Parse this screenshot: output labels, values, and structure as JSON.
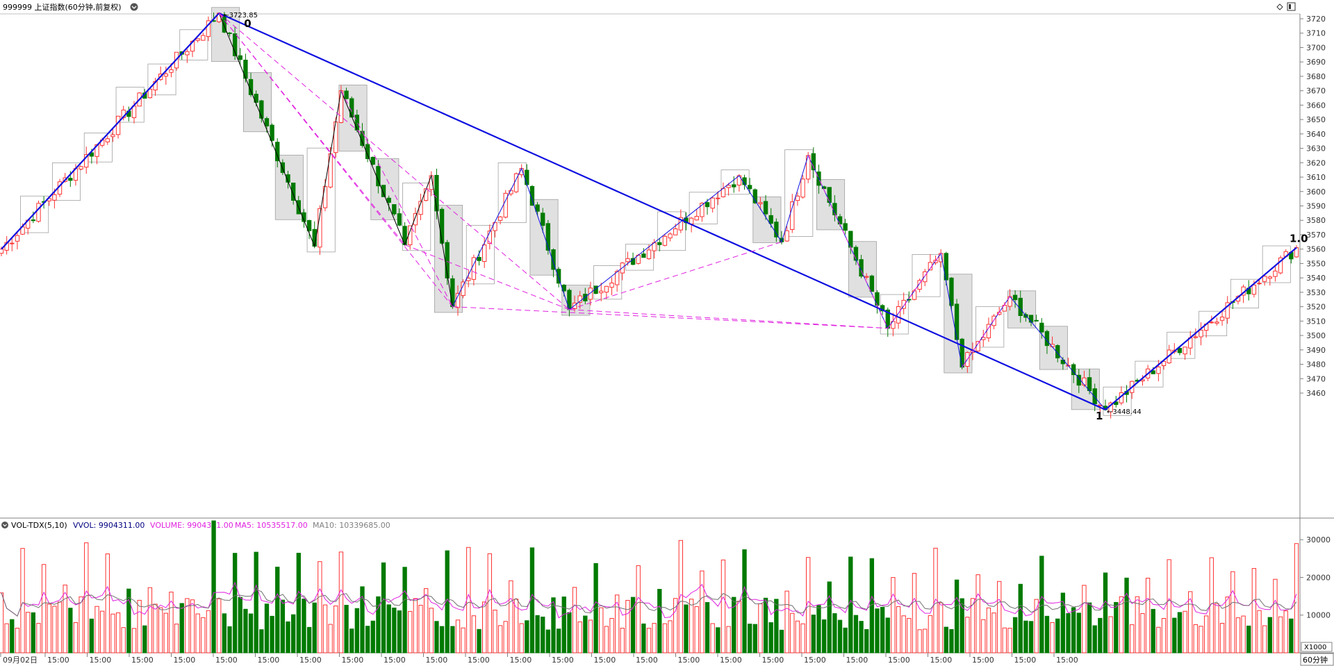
{
  "header": {
    "title": "999999 上证指数(60分钟,前复权)",
    "menu_icon": "chevron-down-icon",
    "right_icons": [
      "diamond-icon",
      "window-icon"
    ]
  },
  "volume_panel": {
    "indicator_name": "VOL-TDX(5,10)",
    "vvol_label": "VVOL: 9904311.00",
    "volume_label": "VOLUME: 9904311.00",
    "ma5_label": "MA5: 10535517.00",
    "ma10_label": "MA10: 10339685.00",
    "unit_label": "X1000",
    "period_label": "60分钟"
  },
  "colors": {
    "up": "#ff3030",
    "down": "#007a00",
    "blue_line": "#1010e0",
    "magenta": "#e020e0",
    "black_line": "#000000",
    "box": "#a0a0a0",
    "box_fill": "#d8d8d8",
    "ma5": "#e020e0",
    "ma10": "#707070"
  },
  "chart_data": {
    "type": "candlestick",
    "price_axis": {
      "ticks": [
        3460,
        3470,
        3480,
        3490,
        3500,
        3510,
        3520,
        3530,
        3540,
        3550,
        3560,
        3570,
        3580,
        3590,
        3600,
        3610,
        3620,
        3630,
        3640,
        3650,
        3660,
        3670,
        3680,
        3690,
        3700,
        3710,
        3720
      ],
      "range": [
        3448,
        3727
      ]
    },
    "volume_axis": {
      "ticks": [
        10000,
        20000,
        30000
      ],
      "range": [
        0,
        36000
      ],
      "unit": "X1000"
    },
    "x_labels": [
      "09月02日",
      "15:00",
      "15:00",
      "15:00",
      "15:00",
      "15:00",
      "15:00",
      "15:00",
      "15:00",
      "15:00",
      "15:00",
      "15:00",
      "15:00",
      "15:00",
      "15:00",
      "15:00",
      "15:00",
      "15:00",
      "15:00",
      "15:00",
      "15:00",
      "15:00",
      "15:00",
      "15:00",
      "15:00",
      "15:00"
    ],
    "annotations": {
      "high_price": "3723.85",
      "low_price": "3448.44",
      "label_0": "0",
      "label_1": "1",
      "label_1_0": "1.0"
    },
    "pivots": [
      {
        "bar": 0,
        "price": 3560
      },
      {
        "bar": 41,
        "price": 3723.85
      },
      {
        "bar": 59,
        "price": 3562
      },
      {
        "bar": 64,
        "price": 3670
      },
      {
        "bar": 76,
        "price": 3563
      },
      {
        "bar": 81,
        "price": 3611
      },
      {
        "bar": 85,
        "price": 3520
      },
      {
        "bar": 98,
        "price": 3616
      },
      {
        "bar": 107,
        "price": 3518
      },
      {
        "bar": 139,
        "price": 3611
      },
      {
        "bar": 147,
        "price": 3565
      },
      {
        "bar": 152,
        "price": 3625
      },
      {
        "bar": 167,
        "price": 3505
      },
      {
        "bar": 177,
        "price": 3557
      },
      {
        "bar": 181,
        "price": 3478
      },
      {
        "bar": 190,
        "price": 3527
      },
      {
        "bar": 208,
        "price": 3448.44
      },
      {
        "bar": 244,
        "price": 3561
      }
    ],
    "bars_count": 245
  }
}
